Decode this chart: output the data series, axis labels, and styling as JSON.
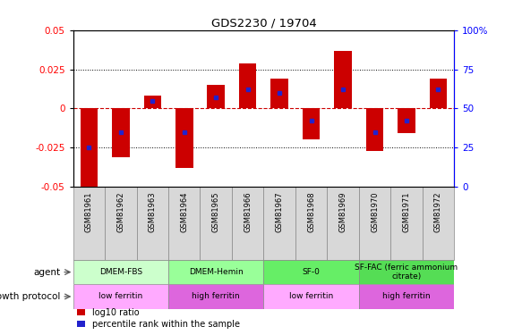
{
  "title": "GDS2230 / 19704",
  "samples": [
    "GSM81961",
    "GSM81962",
    "GSM81963",
    "GSM81964",
    "GSM81965",
    "GSM81966",
    "GSM81967",
    "GSM81968",
    "GSM81969",
    "GSM81970",
    "GSM81971",
    "GSM81972"
  ],
  "log10_ratio": [
    -0.05,
    -0.031,
    0.008,
    -0.038,
    0.015,
    0.029,
    0.019,
    -0.02,
    0.037,
    -0.027,
    -0.016,
    0.019
  ],
  "percentile_rank": [
    25,
    35,
    55,
    35,
    57,
    62,
    60,
    42,
    62,
    35,
    42,
    62
  ],
  "ylim": [
    -0.05,
    0.05
  ],
  "yticks_left": [
    -0.05,
    -0.025,
    0,
    0.025,
    0.05
  ],
  "yticks_right": [
    0,
    25,
    50,
    75,
    100
  ],
  "bar_color": "#cc0000",
  "dot_color": "#2222cc",
  "agent_groups": [
    {
      "label": "DMEM-FBS",
      "start": 0,
      "end": 3,
      "color": "#ccffcc"
    },
    {
      "label": "DMEM-Hemin",
      "start": 3,
      "end": 6,
      "color": "#99ff99"
    },
    {
      "label": "SF-0",
      "start": 6,
      "end": 9,
      "color": "#66ee66"
    },
    {
      "label": "SF-FAC (ferric ammonium\ncitrate)",
      "start": 9,
      "end": 12,
      "color": "#55dd55"
    }
  ],
  "protocol_groups": [
    {
      "label": "low ferritin",
      "start": 0,
      "end": 3,
      "color": "#ffaaff"
    },
    {
      "label": "high ferritin",
      "start": 3,
      "end": 6,
      "color": "#dd66dd"
    },
    {
      "label": "low ferritin",
      "start": 6,
      "end": 9,
      "color": "#ffaaff"
    },
    {
      "label": "high ferritin",
      "start": 9,
      "end": 12,
      "color": "#dd66dd"
    }
  ],
  "agent_label": "agent",
  "protocol_label": "growth protocol",
  "legend_red": "log10 ratio",
  "legend_blue": "percentile rank within the sample",
  "bar_width": 0.55,
  "zero_line_color": "#cc0000"
}
